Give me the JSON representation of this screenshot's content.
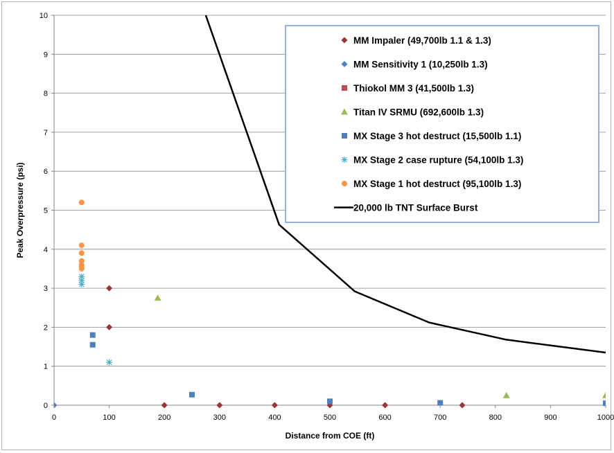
{
  "chart_data": {
    "type": "scatter",
    "xlabel": "Distance from COE (ft)",
    "ylabel": "Peak Overpressure (psi)",
    "xlim": [
      0,
      1000
    ],
    "ylim": [
      0,
      10
    ],
    "x_ticks": [
      0,
      100,
      200,
      300,
      400,
      500,
      600,
      700,
      800,
      900,
      1000
    ],
    "y_ticks": [
      0,
      1,
      2,
      3,
      4,
      5,
      6,
      7,
      8,
      9,
      10
    ],
    "grid": "horizontal",
    "legend_position": "top-right",
    "series": [
      {
        "name": "MM Impaler (49,700lb 1.1 & 1.3)",
        "marker": "diamond",
        "color": "#953735",
        "points": [
          [
            100,
            3.0
          ],
          [
            100,
            2.0
          ],
          [
            200,
            0
          ],
          [
            300,
            0
          ],
          [
            400,
            0
          ],
          [
            500,
            0
          ],
          [
            600,
            0
          ],
          [
            740,
            0
          ]
        ]
      },
      {
        "name": "MM Sensitivity 1 (10,250lb 1.3)",
        "marker": "diamond",
        "color": "#4F81BD",
        "points": [
          [
            0,
            0
          ]
        ]
      },
      {
        "name": "Thiokol MM 3 (41,500lb 1.3)",
        "marker": "square",
        "color": "#C0504D",
        "points": []
      },
      {
        "name": "Titan IV SRMU (692,600lb 1.3)",
        "marker": "triangle",
        "color": "#9BBB59",
        "points": [
          [
            188,
            2.75
          ],
          [
            820,
            0.25
          ],
          [
            1000,
            0.25
          ]
        ]
      },
      {
        "name": "MX Stage 3 hot destruct (15,500lb 1.1)",
        "marker": "square",
        "color": "#4F81BD",
        "points": [
          [
            70,
            1.8
          ],
          [
            70,
            1.55
          ],
          [
            250,
            0.27
          ],
          [
            500,
            0.1
          ],
          [
            700,
            0.06
          ],
          [
            1000,
            0.05
          ]
        ]
      },
      {
        "name": "MX Stage 2 case rupture (54,100lb 1.3)",
        "marker": "asterisk",
        "color": "#4BACC6",
        "points": [
          [
            50,
            3.3
          ],
          [
            50,
            3.2
          ],
          [
            50,
            3.1
          ],
          [
            100,
            1.1
          ]
        ]
      },
      {
        "name": "MX Stage 1 hot destruct (95,100lb 1.3)",
        "marker": "circle",
        "color": "#F79646",
        "points": [
          [
            50,
            5.2
          ],
          [
            50,
            4.1
          ],
          [
            50,
            3.9
          ],
          [
            50,
            3.7
          ],
          [
            50,
            3.6
          ],
          [
            50,
            3.55
          ],
          [
            50,
            3.5
          ]
        ]
      },
      {
        "name": "20,000 lb TNT Surface Burst",
        "marker": "line",
        "color": "#000000",
        "points": [
          [
            275,
            10.0
          ],
          [
            408,
            4.63
          ],
          [
            545,
            2.92
          ],
          [
            680,
            2.12
          ],
          [
            820,
            1.68
          ],
          [
            1000,
            1.35
          ]
        ]
      }
    ]
  }
}
